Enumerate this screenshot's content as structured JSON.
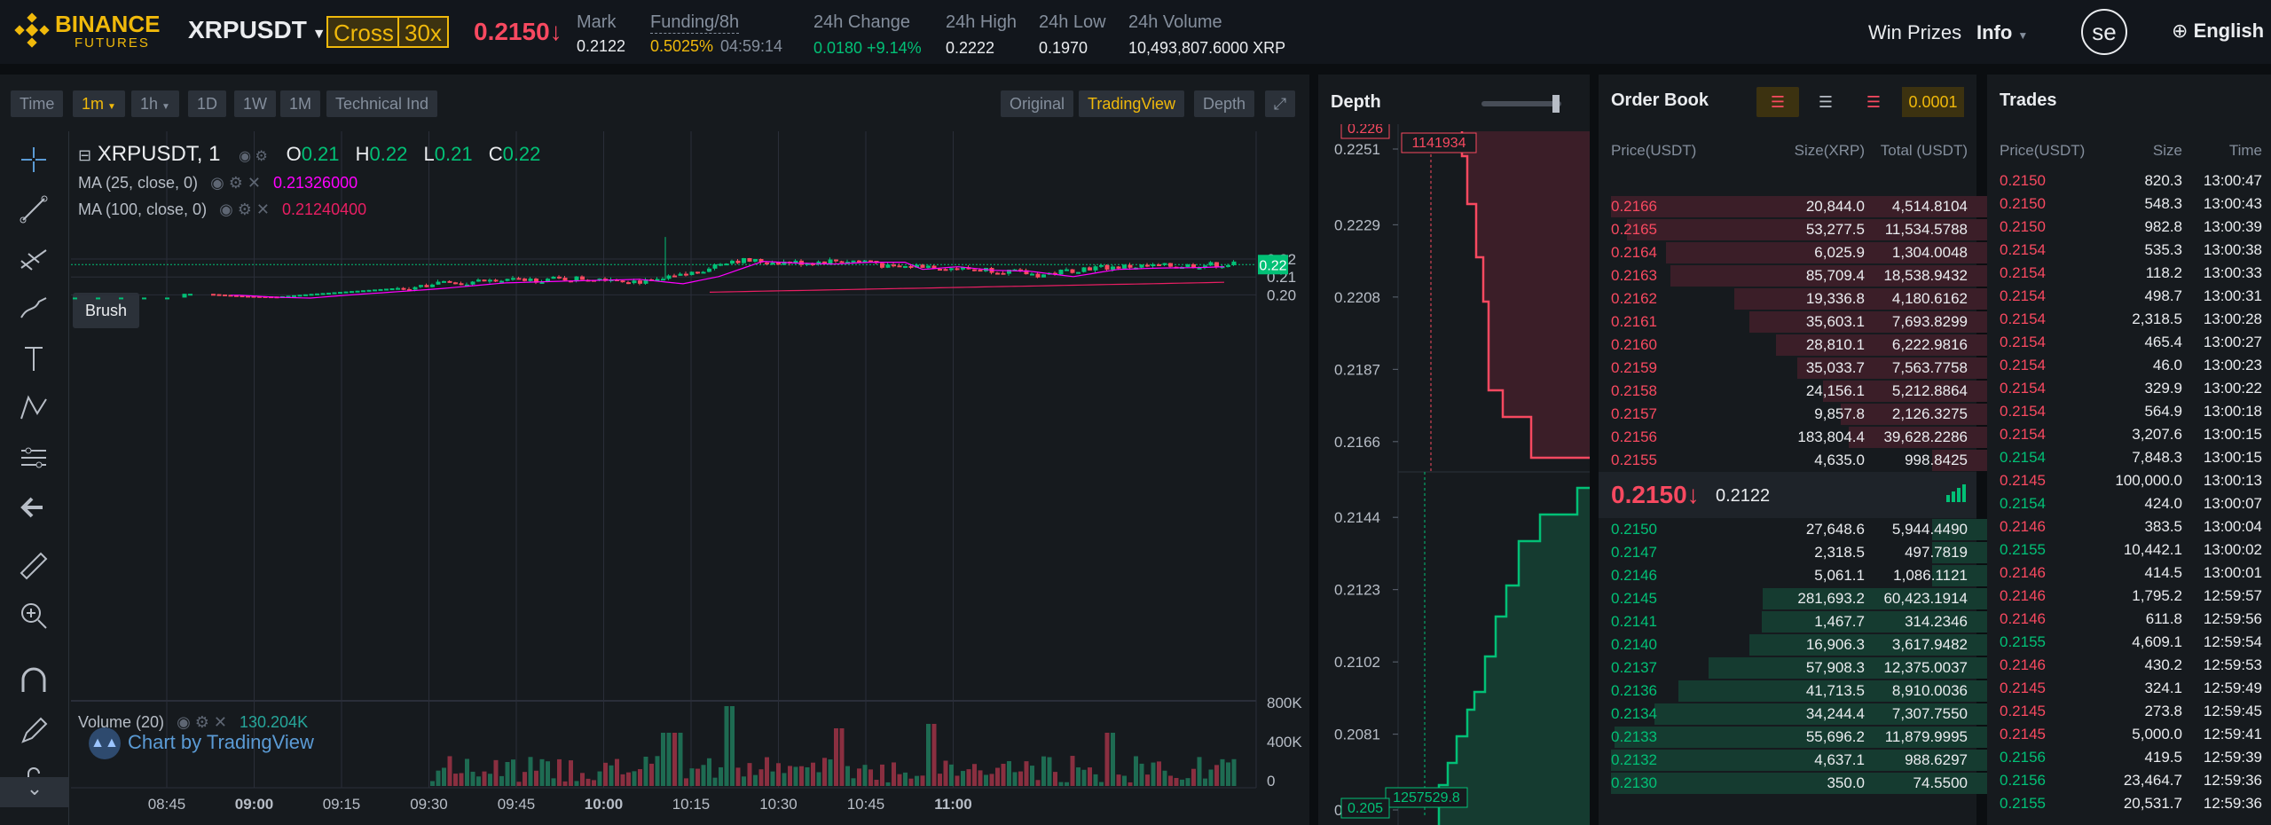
{
  "header": {
    "brand": "BINANCE",
    "brand_sub": "FUTURES",
    "symbol": "XRPUSDT",
    "margin_mode": "Cross",
    "leverage": "30x",
    "last_price": "0.2150",
    "last_arrow": "↓",
    "mark_label": "Mark",
    "mark_value": "0.2122",
    "funding_label": "Funding/8h",
    "funding_rate": "0.5025%",
    "funding_countdown": "04:59:14",
    "change_label": "24h Change",
    "change_value": "0.0180 +9.14%",
    "high_label": "24h High",
    "high_value": "0.2222",
    "low_label": "24h Low",
    "low_value": "0.1970",
    "volume_label": "24h Volume",
    "volume_value": "10,493,807.6000 XRP",
    "win_prizes": "Win Prizes",
    "info": "Info",
    "avatar": "se",
    "language": "English"
  },
  "chart_toolbar": {
    "intervals": [
      "Time",
      "1m",
      "1h",
      "1D",
      "1W",
      "1M",
      "Technical Ind"
    ],
    "views": [
      "Original",
      "TradingView",
      "Depth"
    ]
  },
  "chart": {
    "symbol_title": "XRPUSDT, 1",
    "ohlc": {
      "o_label": "O",
      "o": "0.21",
      "h_label": "H",
      "h": "0.22",
      "l_label": "L",
      "l": "0.21",
      "c_label": "C",
      "c": "0.22"
    },
    "ma1_label": "MA (25, close, 0)",
    "ma1_value": "0.21326000",
    "ma2_label": "MA (100, close, 0)",
    "ma2_value": "0.21240400",
    "brush_tooltip": "Brush",
    "price_ticks": [
      "0.22",
      "0.21",
      "0.20"
    ],
    "current_price_tag": "0.22",
    "volume_label": "Volume (20)",
    "volume_value": "130.204K",
    "volume_ticks": [
      "800K",
      "400K",
      "0"
    ],
    "time_ticks": [
      "08:45",
      "09:00",
      "09:15",
      "09:30",
      "09:45",
      "10:00",
      "10:15",
      "10:30",
      "10:45",
      "11:00"
    ],
    "watermark": "Chart by TradingView",
    "color_up": "#02c076",
    "color_down": "#f84960",
    "color_ma1": "#ff00ff",
    "color_ma2": "#e91e63"
  },
  "depth": {
    "title": "Depth",
    "top_tag": "0.226",
    "ask_qty_tag": "1141934",
    "bid_qty_tag": "1257529.8",
    "bottom_tag": "0.205",
    "price_ticks": [
      "0.2251",
      "0.2229",
      "0.2208",
      "0.2187",
      "0.2166",
      "0.2144",
      "0.2123",
      "0.2102",
      "0.2081",
      "0.2059"
    ]
  },
  "orderbook": {
    "title": "Order Book",
    "precision": "0.0001",
    "col_price": "Price(USDT)",
    "col_size": "Size(XRP)",
    "col_total": "Total (USDT)",
    "last_price": "0.2150",
    "last_arrow": "↓",
    "mark_price": "0.2122",
    "asks": [
      [
        "0.2166",
        "20,844.0",
        "4,514.8104"
      ],
      [
        "0.2165",
        "53,277.5",
        "11,534.5788"
      ],
      [
        "0.2164",
        "6,025.9",
        "1,304.0048"
      ],
      [
        "0.2163",
        "85,709.4",
        "18,538.9432"
      ],
      [
        "0.2162",
        "19,336.8",
        "4,180.6162"
      ],
      [
        "0.2161",
        "35,603.1",
        "7,693.8299"
      ],
      [
        "0.2160",
        "28,810.1",
        "6,222.9816"
      ],
      [
        "0.2159",
        "35,033.7",
        "7,563.7758"
      ],
      [
        "0.2158",
        "24,156.1",
        "5,212.8864"
      ],
      [
        "0.2157",
        "9,857.8",
        "2,126.3275"
      ],
      [
        "0.2156",
        "183,804.4",
        "39,628.2286"
      ],
      [
        "0.2155",
        "4,635.0",
        "998.8425"
      ]
    ],
    "bids": [
      [
        "0.2150",
        "27,648.6",
        "5,944.4490"
      ],
      [
        "0.2147",
        "2,318.5",
        "497.7819"
      ],
      [
        "0.2146",
        "5,061.1",
        "1,086.1121"
      ],
      [
        "0.2145",
        "281,693.2",
        "60,423.1914"
      ],
      [
        "0.2141",
        "1,467.7",
        "314.2346"
      ],
      [
        "0.2140",
        "16,906.3",
        "3,617.9482"
      ],
      [
        "0.2137",
        "57,908.3",
        "12,375.0037"
      ],
      [
        "0.2136",
        "41,713.5",
        "8,910.0036"
      ],
      [
        "0.2134",
        "34,244.4",
        "7,307.7550"
      ],
      [
        "0.2133",
        "55,696.2",
        "11,879.9995"
      ],
      [
        "0.2132",
        "4,637.1",
        "988.6297"
      ],
      [
        "0.2130",
        "350.0",
        "74.5500"
      ]
    ]
  },
  "trades": {
    "title": "Trades",
    "col_price": "Price(USDT)",
    "col_size": "Size",
    "col_time": "Time",
    "rows": [
      [
        "0.2150",
        "820.3",
        "13:00:47",
        "down"
      ],
      [
        "0.2150",
        "548.3",
        "13:00:43",
        "down"
      ],
      [
        "0.2150",
        "982.8",
        "13:00:39",
        "down"
      ],
      [
        "0.2154",
        "535.3",
        "13:00:38",
        "down"
      ],
      [
        "0.2154",
        "118.2",
        "13:00:33",
        "down"
      ],
      [
        "0.2154",
        "498.7",
        "13:00:31",
        "down"
      ],
      [
        "0.2154",
        "2,318.5",
        "13:00:28",
        "down"
      ],
      [
        "0.2154",
        "465.4",
        "13:00:27",
        "down"
      ],
      [
        "0.2154",
        "46.0",
        "13:00:23",
        "down"
      ],
      [
        "0.2154",
        "329.9",
        "13:00:22",
        "down"
      ],
      [
        "0.2154",
        "564.9",
        "13:00:18",
        "down"
      ],
      [
        "0.2154",
        "3,207.6",
        "13:00:15",
        "down"
      ],
      [
        "0.2154",
        "7,848.3",
        "13:00:15",
        "up"
      ],
      [
        "0.2145",
        "100,000.0",
        "13:00:13",
        "down"
      ],
      [
        "0.2154",
        "424.0",
        "13:00:07",
        "up"
      ],
      [
        "0.2146",
        "383.5",
        "13:00:04",
        "down"
      ],
      [
        "0.2155",
        "10,442.1",
        "13:00:02",
        "up"
      ],
      [
        "0.2146",
        "414.5",
        "13:00:01",
        "down"
      ],
      [
        "0.2146",
        "1,795.2",
        "12:59:57",
        "down"
      ],
      [
        "0.2146",
        "611.8",
        "12:59:56",
        "down"
      ],
      [
        "0.2155",
        "4,609.1",
        "12:59:54",
        "up"
      ],
      [
        "0.2146",
        "430.2",
        "12:59:53",
        "down"
      ],
      [
        "0.2145",
        "324.1",
        "12:59:49",
        "down"
      ],
      [
        "0.2145",
        "273.8",
        "12:59:45",
        "down"
      ],
      [
        "0.2145",
        "5,000.0",
        "12:59:41",
        "down"
      ],
      [
        "0.2156",
        "419.5",
        "12:59:39",
        "up"
      ],
      [
        "0.2156",
        "23,464.7",
        "12:59:36",
        "up"
      ],
      [
        "0.2155",
        "20,531.7",
        "12:59:36",
        "up"
      ]
    ]
  }
}
